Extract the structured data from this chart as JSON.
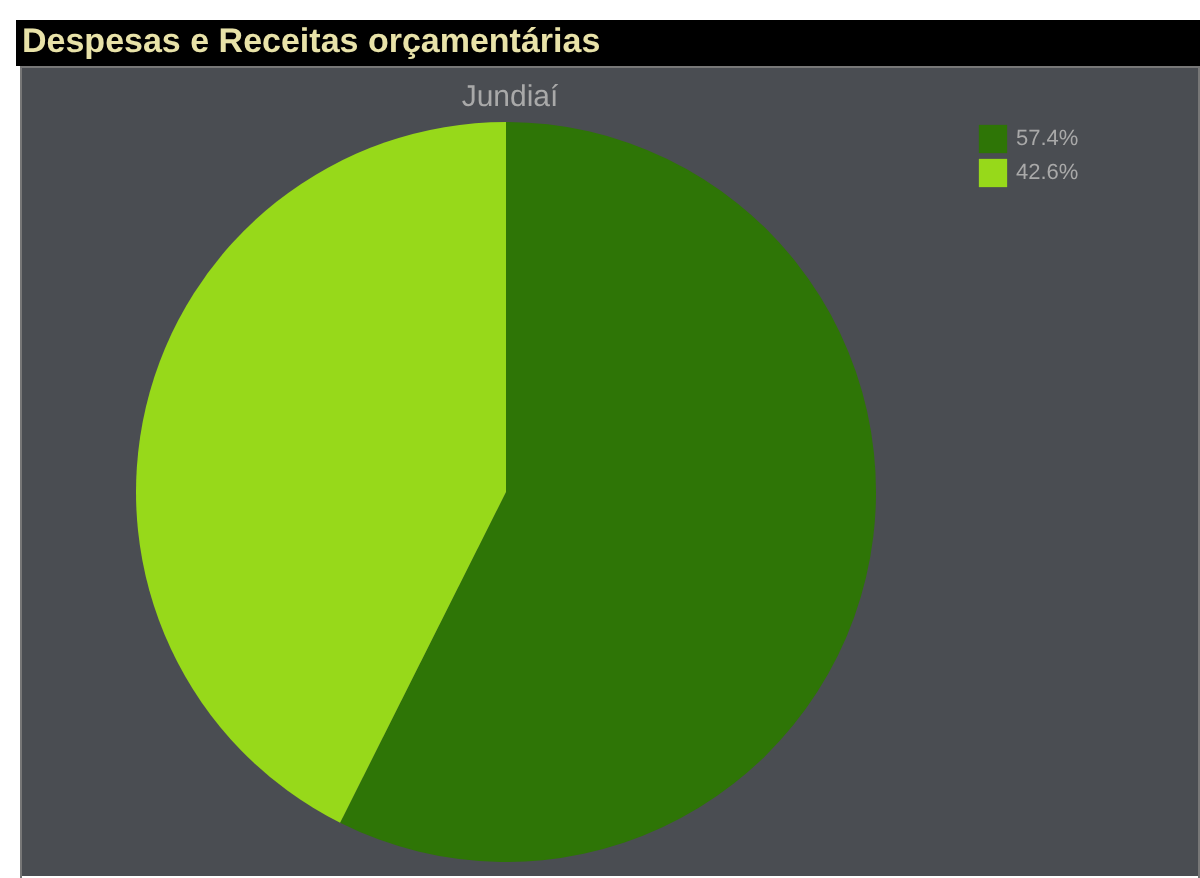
{
  "chart_data": {
    "type": "pie",
    "title": "Despesas e Receitas orçamentárias",
    "subtitle": "Jundiaí",
    "categories": [
      "57.4%",
      "42.6%"
    ],
    "values": [
      57.4,
      42.6
    ],
    "colors": [
      "#2e7506",
      "#97d91a"
    ],
    "legend": "top right"
  }
}
